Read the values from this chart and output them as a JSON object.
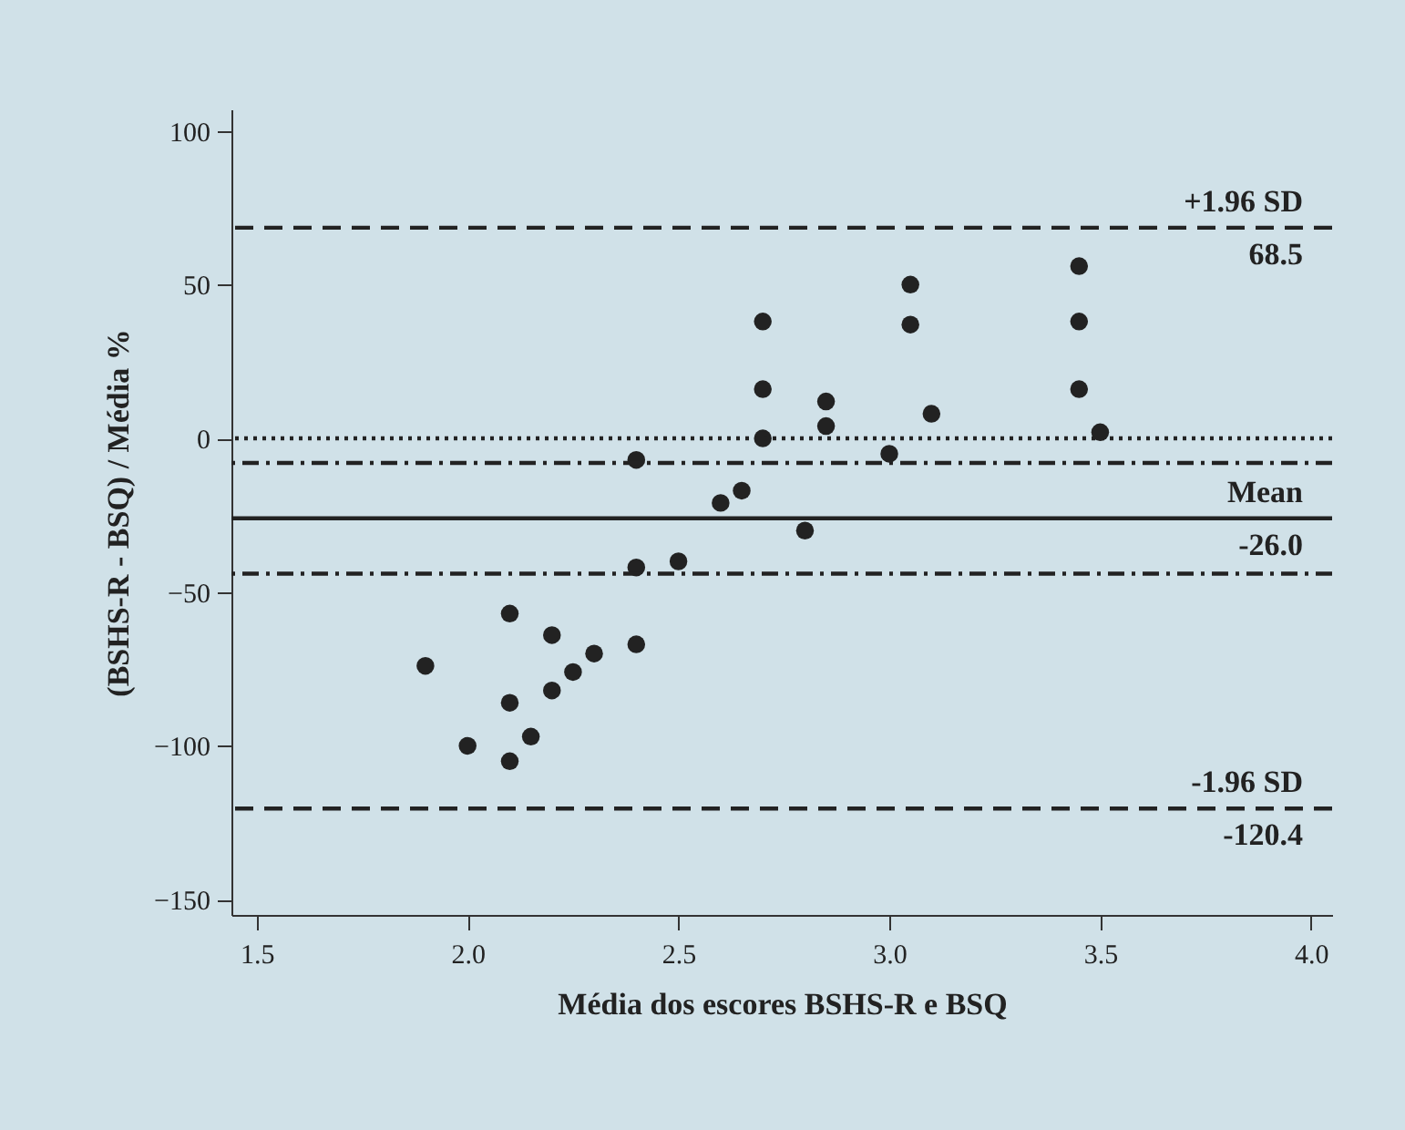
{
  "chart_data": {
    "type": "scatter",
    "xlabel": "Média dos escores BSHS-R e BSQ",
    "ylabel": "(BSHS-R - BSQ) / Média %",
    "x": [
      2.7,
      2.7,
      2.7,
      2.4,
      2.85,
      2.85,
      3.05,
      3.05,
      3.1,
      3.0,
      3.45,
      3.45,
      3.45,
      3.5,
      2.6,
      2.65,
      2.8,
      2.4,
      2.5,
      2.1,
      2.2,
      2.3,
      2.4,
      1.9,
      2.25,
      2.2,
      2.1,
      2.15,
      2.0,
      2.1
    ],
    "series": [
      {
        "color": "#222222",
        "values": [
          38,
          16,
          0,
          -7,
          12,
          4,
          50,
          37,
          8,
          -5,
          56,
          38,
          16,
          2,
          -21,
          -17,
          -30,
          -42,
          -40,
          -57,
          -64,
          -70,
          -67,
          -74,
          -76,
          -82,
          -86,
          -97,
          -100,
          -105
        ]
      }
    ],
    "marker": "circle",
    "xlim": [
      1.44,
      4.05
    ],
    "ylim": [
      -155,
      107
    ],
    "xticks": [
      1.5,
      {
        "value": 2,
        "label": "2.0"
      },
      2.5,
      {
        "value": 3,
        "label": "3.0"
      },
      3.5,
      {
        "value": 4,
        "label": "4.0"
      }
    ],
    "yticks": [
      -150,
      -100,
      -50,
      0,
      50,
      100
    ],
    "ref_lines": [
      {
        "axis": "y",
        "value": 68.5,
        "label": "+1.96 SD",
        "line_style": "dashed",
        "color": "#222222"
      },
      {
        "axis": "y",
        "value": 0,
        "line_style": "dotted",
        "color": "#222222"
      },
      {
        "axis": "y",
        "value": -8,
        "line_style": "dashdot",
        "color": "#222222"
      },
      {
        "axis": "y",
        "value": -26.0,
        "label": "Mean",
        "line_style": "solid",
        "color": "#222222"
      },
      {
        "axis": "y",
        "value": -44,
        "line_style": "dashdot",
        "color": "#222222"
      },
      {
        "axis": "y",
        "value": -120.4,
        "label": "-1.96 SD",
        "line_style": "dashed",
        "color": "#222222"
      }
    ],
    "annotations": [
      {
        "text": "68.5",
        "y": 68.5
      },
      {
        "text": "-26.0",
        "y": -26.0
      },
      {
        "text": "-120.4",
        "y": -120.4
      }
    ]
  }
}
